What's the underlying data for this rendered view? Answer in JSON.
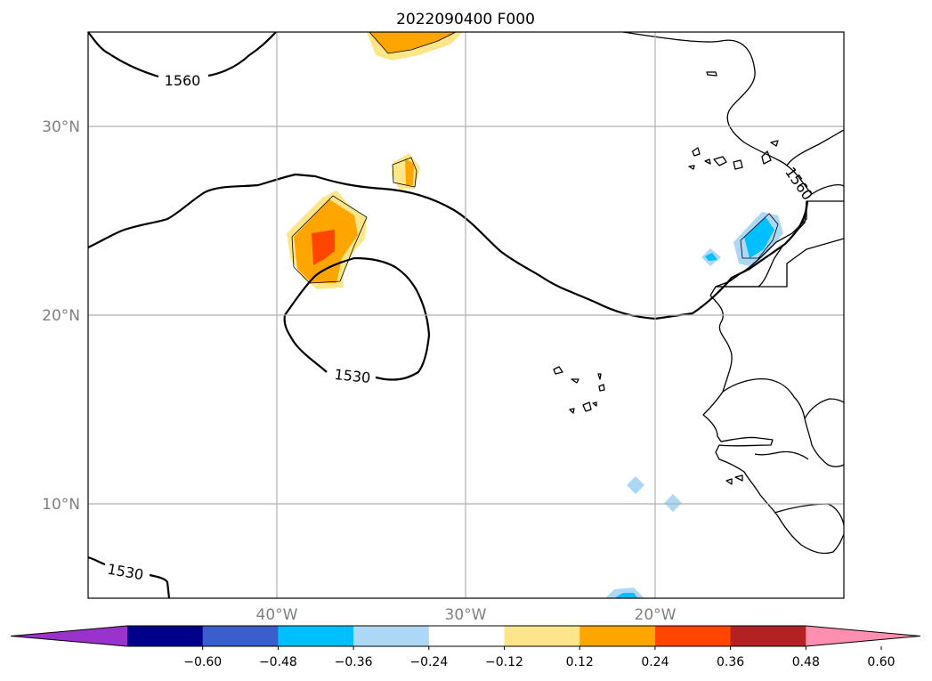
{
  "map": {
    "title": "2022090400 F000",
    "lat_labels": [
      "30°N",
      "20°N",
      "10°N"
    ],
    "lon_labels": [
      "40°W",
      "30°W",
      "20°W"
    ],
    "contour_labels": [
      "1560",
      "1530",
      "1530",
      "1560"
    ]
  },
  "colorbar": {
    "ticks": [
      "−0.60",
      "−0.48",
      "−0.36",
      "−0.24",
      "−0.12",
      "0.12",
      "0.24",
      "0.36",
      "0.48",
      "0.60"
    ],
    "colors": [
      "#9933cc",
      "#00008b",
      "#3a5fcd",
      "#00bfff",
      "#add8f5",
      "#ffffff",
      "#fde68a",
      "#ffa500",
      "#ff4500",
      "#b22222",
      "#ff8fae"
    ],
    "extend": "both"
  },
  "palette": {
    "light_yellow": "#fde68a",
    "orange": "#ffa500",
    "red_orange": "#ff4500",
    "light_blue": "#add8f5",
    "deep_sky_blue": "#00bfff",
    "grid": "#b0b0b0",
    "tick_label": "#808080"
  }
}
